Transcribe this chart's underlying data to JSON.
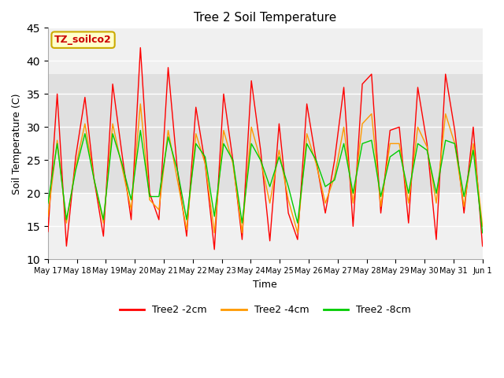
{
  "title": "Tree 2 Soil Temperature",
  "xlabel": "Time",
  "ylabel": "Soil Temperature (C)",
  "ylim": [
    10,
    45
  ],
  "annotation_text": "TZ_soilco2",
  "annotation_color": "#cc0000",
  "annotation_bg": "#ffffcc",
  "annotation_border": "#ccaa00",
  "legend_labels": [
    "Tree2 -2cm",
    "Tree2 -4cm",
    "Tree2 -8cm"
  ],
  "line_colors": [
    "#ff0000",
    "#ff9900",
    "#00cc00"
  ],
  "bg_band_low": 20,
  "bg_band_high": 38,
  "bg_color": "#e0e0e0",
  "axes_bg": "#f0f0f0",
  "x_tick_labels": [
    "May 17",
    "May 18",
    "May 19",
    "May 20",
    "May 21",
    "May 22",
    "May 23",
    "May 24",
    "May 25",
    "May 26",
    "May 27",
    "May 28",
    "May 29",
    "May 30",
    "May 31",
    "Jun 1"
  ],
  "series_2cm": [
    14.2,
    35.0,
    12.0,
    25.5,
    34.5,
    22.0,
    13.5,
    36.5,
    26.0,
    16.0,
    42.0,
    20.0,
    16.0,
    39.0,
    23.5,
    13.5,
    33.0,
    24.5,
    11.5,
    35.0,
    25.0,
    13.0,
    37.0,
    26.5,
    12.8,
    30.5,
    17.0,
    13.0,
    33.5,
    25.0,
    17.0,
    25.0,
    36.0,
    15.0,
    36.5,
    38.0,
    17.0,
    29.5,
    30.0,
    15.5,
    36.0,
    27.5,
    13.0,
    38.0,
    29.5,
    17.0,
    30.0,
    12.0
  ],
  "series_4cm": [
    16.5,
    28.0,
    15.5,
    24.0,
    30.5,
    22.0,
    15.5,
    30.5,
    24.0,
    17.5,
    33.5,
    19.0,
    17.5,
    29.5,
    22.0,
    14.5,
    29.0,
    24.5,
    14.0,
    29.5,
    24.5,
    14.0,
    30.0,
    25.0,
    18.5,
    26.5,
    19.0,
    14.0,
    29.0,
    24.5,
    18.5,
    22.5,
    30.0,
    18.5,
    30.5,
    32.0,
    18.0,
    27.5,
    27.5,
    18.5,
    30.0,
    27.0,
    18.5,
    32.0,
    27.5,
    18.0,
    27.5,
    15.0
  ],
  "series_8cm": [
    18.5,
    27.5,
    16.0,
    23.5,
    29.0,
    22.0,
    16.0,
    29.0,
    24.5,
    19.0,
    29.5,
    19.5,
    19.5,
    28.5,
    23.5,
    16.0,
    27.5,
    25.5,
    16.5,
    27.5,
    25.0,
    15.5,
    27.5,
    25.0,
    21.0,
    25.5,
    21.0,
    15.5,
    27.5,
    25.0,
    21.0,
    22.0,
    27.5,
    20.0,
    27.5,
    28.0,
    19.5,
    25.5,
    26.5,
    20.0,
    27.5,
    26.5,
    20.0,
    28.0,
    27.5,
    19.5,
    26.5,
    14.0
  ]
}
